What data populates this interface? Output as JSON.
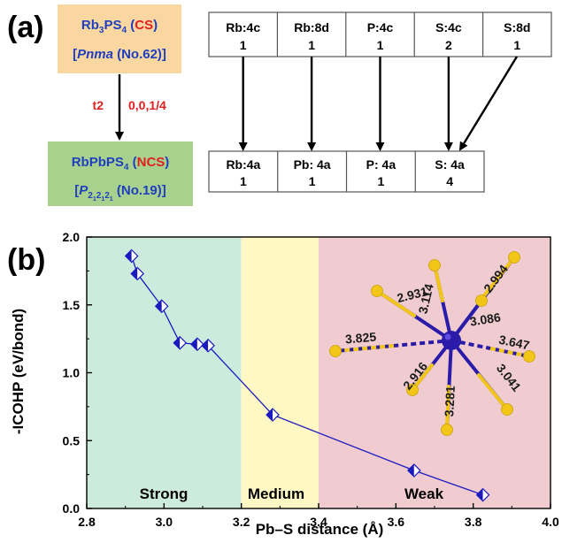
{
  "panel_a": {
    "label": "(a)",
    "cs_box": {
      "formula_main": "Rb",
      "formula_sub1": "3",
      "formula_ps": "PS",
      "formula_sub2": "4",
      "tag_open": " (",
      "tag": "CS",
      "tag_close": ")",
      "group_open": "[",
      "group_name": "Pnma",
      "group_num": " (No.62)]"
    },
    "transition": {
      "label": "t2",
      "vector": "0,0,1/4"
    },
    "ncs_box": {
      "formula_main": "RbPbPS",
      "formula_sub": "4",
      "tag_open": " (",
      "tag": "NCS",
      "tag_close": ")",
      "group_open": "[",
      "group_p": "P",
      "group_sub1": "2",
      "group_sub2": "1",
      "group_sub3": "2",
      "group_sub4": "1",
      "group_sub5": "2",
      "group_sub6": "1",
      "group_num": " (No.19)]"
    },
    "top_sites": [
      {
        "site": "Rb:4c",
        "mult": "1"
      },
      {
        "site": "Rb:8d",
        "mult": "1"
      },
      {
        "site": "P:4c",
        "mult": "1"
      },
      {
        "site": "S:4c",
        "mult": "2"
      },
      {
        "site": "S:8d",
        "mult": "1"
      }
    ],
    "bottom_sites": [
      {
        "site": "Rb:4a",
        "mult": "1"
      },
      {
        "site": "Pb: 4a",
        "mult": "1"
      },
      {
        "site": "P: 4a",
        "mult": "1"
      },
      {
        "site": "S: 4a",
        "mult": "4"
      }
    ],
    "colors": {
      "cs_fill": "#FAD7A0",
      "ncs_fill": "#A9D18E",
      "formula_blue": "#1F3FBF",
      "tag_red": "#E02020",
      "box_border": "#555555"
    }
  },
  "panel_b": {
    "label": "(b)",
    "region_labels": {
      "strong": "Strong",
      "medium": "Medium",
      "weak": "Weak"
    },
    "region_colors": {
      "strong": "#CDEBDC",
      "medium": "#FFF8C4",
      "weak": "#F0CCD1"
    },
    "bond_lengths": [
      "2.994",
      "3.114",
      "2.931",
      "3.086",
      "3.825",
      "3.647",
      "2.916",
      "3.281",
      "3.041"
    ],
    "structure_colors": {
      "bond": "#2A1CA8",
      "sulfur": "#F2C617",
      "lead": "#2A1CA8"
    }
  },
  "chart_data": {
    "type": "line",
    "xlabel": "Pb–S distance (Å)",
    "ylabel": "-ICOHP (eV/bond)",
    "xlim": [
      2.8,
      4.0
    ],
    "ylim": [
      0.0,
      2.0
    ],
    "xticks": [
      "2.8",
      "3.0",
      "3.2",
      "3.4",
      "3.6",
      "3.8",
      "4.0"
    ],
    "yticks": [
      "0.0",
      "0.5",
      "1.0",
      "1.5",
      "2.0"
    ],
    "regions": [
      {
        "name": "Strong",
        "x": [
          2.8,
          3.2
        ]
      },
      {
        "name": "Medium",
        "x": [
          3.2,
          3.4
        ]
      },
      {
        "name": "Weak",
        "x": [
          3.4,
          4.0
        ]
      }
    ],
    "series": [
      {
        "color": "#1A1ABF",
        "marker": "half-filled diamond",
        "x": [
          2.916,
          2.931,
          2.994,
          3.041,
          3.086,
          3.114,
          3.281,
          3.647,
          3.825
        ],
        "y": [
          1.86,
          1.73,
          1.49,
          1.22,
          1.21,
          1.2,
          0.69,
          0.28,
          0.1
        ]
      }
    ],
    "grid": false
  }
}
